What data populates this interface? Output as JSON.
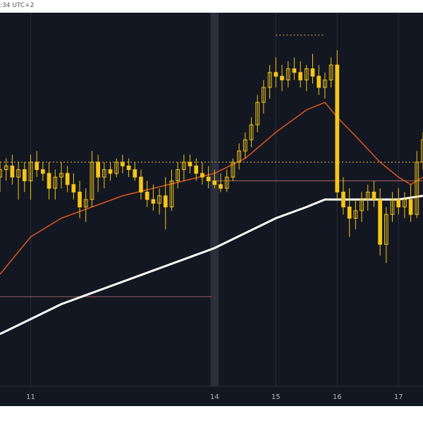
{
  "header": {
    "timestamp_label": ":34 UTC+2"
  },
  "colors": {
    "background": "#131722",
    "candle": "#f5c518",
    "ma_fast": "#d2541e",
    "ma_slow": "#ffffff",
    "dotted_level": "#c8a040",
    "level_line": "#8a5a5a",
    "grid": "#2a2e39",
    "axis_text": "#b2b5be",
    "highlight_band": "#3a3f4b"
  },
  "chart_data": {
    "type": "candlestick",
    "x_tick_labels": [
      "11",
      "14",
      "15",
      "16",
      "17"
    ],
    "x_tick_positions": [
      11,
      14,
      15,
      16,
      17
    ],
    "highlighted_session": 14,
    "xlim": [
      10.5,
      17.4
    ],
    "ylim": [
      0,
      100
    ],
    "candles": [
      [
        10.5,
        56,
        60,
        52,
        58
      ],
      [
        10.6,
        58,
        61,
        55,
        59
      ],
      [
        10.7,
        59,
        62,
        54,
        56
      ],
      [
        10.8,
        56,
        60,
        50,
        58
      ],
      [
        10.9,
        58,
        60,
        52,
        55
      ],
      [
        11.0,
        55,
        62,
        50,
        60
      ],
      [
        11.1,
        60,
        63,
        56,
        58
      ],
      [
        11.2,
        58,
        60,
        55,
        57
      ],
      [
        11.3,
        57,
        60,
        50,
        53
      ],
      [
        11.4,
        53,
        58,
        50,
        56
      ],
      [
        11.5,
        56,
        60,
        53,
        57
      ],
      [
        11.6,
        57,
        59,
        52,
        54
      ],
      [
        11.7,
        54,
        57,
        50,
        52
      ],
      [
        11.8,
        52,
        55,
        45,
        48
      ],
      [
        11.9,
        48,
        53,
        44,
        50
      ],
      [
        12.0,
        50,
        63,
        48,
        60
      ],
      [
        12.1,
        60,
        62,
        52,
        56
      ],
      [
        12.2,
        56,
        60,
        53,
        58
      ],
      [
        12.3,
        58,
        60,
        55,
        57
      ],
      [
        12.4,
        57,
        61,
        56,
        60
      ],
      [
        12.5,
        60,
        62,
        57,
        59
      ],
      [
        12.6,
        59,
        61,
        56,
        58
      ],
      [
        12.7,
        58,
        60,
        55,
        56
      ],
      [
        12.8,
        56,
        58,
        50,
        52
      ],
      [
        12.9,
        52,
        55,
        48,
        50
      ],
      [
        13.0,
        50,
        54,
        47,
        49
      ],
      [
        13.1,
        49,
        53,
        46,
        51
      ],
      [
        13.2,
        51,
        56,
        42,
        48
      ],
      [
        13.3,
        48,
        58,
        47,
        55
      ],
      [
        13.4,
        55,
        60,
        53,
        58
      ],
      [
        13.5,
        58,
        62,
        55,
        60
      ],
      [
        13.6,
        60,
        62,
        57,
        59
      ],
      [
        13.7,
        59,
        61,
        55,
        57
      ],
      [
        13.8,
        57,
        60,
        54,
        56
      ],
      [
        13.9,
        56,
        59,
        53,
        55
      ],
      [
        14.0,
        55,
        58,
        53,
        54
      ],
      [
        14.1,
        54,
        57,
        52,
        53
      ],
      [
        14.2,
        53,
        58,
        52,
        56
      ],
      [
        14.3,
        56,
        61,
        55,
        60
      ],
      [
        14.4,
        60,
        65,
        58,
        63
      ],
      [
        14.5,
        63,
        68,
        61,
        66
      ],
      [
        14.6,
        66,
        72,
        64,
        70
      ],
      [
        14.7,
        70,
        78,
        68,
        76
      ],
      [
        14.8,
        76,
        82,
        73,
        80
      ],
      [
        14.9,
        80,
        86,
        77,
        84
      ],
      [
        15.0,
        84,
        88,
        80,
        83
      ],
      [
        15.1,
        83,
        86,
        79,
        82
      ],
      [
        15.2,
        82,
        87,
        80,
        85
      ],
      [
        15.3,
        85,
        88,
        82,
        84
      ],
      [
        15.4,
        84,
        87,
        80,
        82
      ],
      [
        15.5,
        82,
        86,
        79,
        85
      ],
      [
        15.6,
        85,
        89,
        81,
        83
      ],
      [
        15.7,
        83,
        86,
        78,
        80
      ],
      [
        15.8,
        80,
        84,
        77,
        82
      ],
      [
        15.9,
        82,
        88,
        80,
        86
      ],
      [
        16.0,
        86,
        90,
        50,
        52
      ],
      [
        16.1,
        52,
        56,
        46,
        48
      ],
      [
        16.2,
        48,
        53,
        40,
        45
      ],
      [
        16.3,
        45,
        50,
        42,
        47
      ],
      [
        16.4,
        47,
        52,
        44,
        50
      ],
      [
        16.5,
        50,
        54,
        47,
        52
      ],
      [
        16.6,
        52,
        55,
        48,
        50
      ],
      [
        16.7,
        50,
        53,
        35,
        38
      ],
      [
        16.8,
        38,
        48,
        33,
        46
      ],
      [
        16.9,
        46,
        52,
        44,
        50
      ],
      [
        17.0,
        50,
        53,
        46,
        48
      ],
      [
        17.1,
        48,
        52,
        45,
        50
      ],
      [
        17.2,
        50,
        54,
        44,
        46
      ],
      [
        17.3,
        46,
        63,
        45,
        60
      ],
      [
        17.4,
        60,
        68,
        58,
        66
      ]
    ],
    "ma_fast": [
      [
        10.5,
        30
      ],
      [
        11.0,
        40
      ],
      [
        11.5,
        45
      ],
      [
        12.0,
        48
      ],
      [
        12.5,
        51
      ],
      [
        13.0,
        53
      ],
      [
        13.5,
        55
      ],
      [
        14.0,
        57
      ],
      [
        14.5,
        61
      ],
      [
        15.0,
        68
      ],
      [
        15.5,
        74
      ],
      [
        15.8,
        76
      ],
      [
        16.0,
        72
      ],
      [
        16.3,
        67
      ],
      [
        16.7,
        60
      ],
      [
        17.0,
        56
      ],
      [
        17.2,
        54
      ],
      [
        17.4,
        56
      ]
    ],
    "ma_slow": [
      [
        10.5,
        14
      ],
      [
        11.0,
        18
      ],
      [
        11.5,
        22
      ],
      [
        12.0,
        25
      ],
      [
        12.5,
        28
      ],
      [
        13.0,
        31
      ],
      [
        13.5,
        34
      ],
      [
        14.0,
        37
      ],
      [
        14.5,
        41
      ],
      [
        15.0,
        45
      ],
      [
        15.5,
        48
      ],
      [
        15.8,
        50
      ],
      [
        16.0,
        50
      ],
      [
        16.5,
        50
      ],
      [
        17.0,
        50
      ],
      [
        17.4,
        51
      ]
    ],
    "levels": [
      {
        "y": 60,
        "style": "dotted",
        "x_start": 10.5,
        "x_end": 17.4
      },
      {
        "y": 94,
        "style": "dotted",
        "x_start": 15.0,
        "x_end": 15.8
      },
      {
        "y": 55,
        "style": "solid",
        "x_start": 14.0,
        "x_end": 17.4
      },
      {
        "y": 24,
        "style": "solid",
        "x_start": 10.5,
        "x_end": 13.95
      }
    ]
  }
}
